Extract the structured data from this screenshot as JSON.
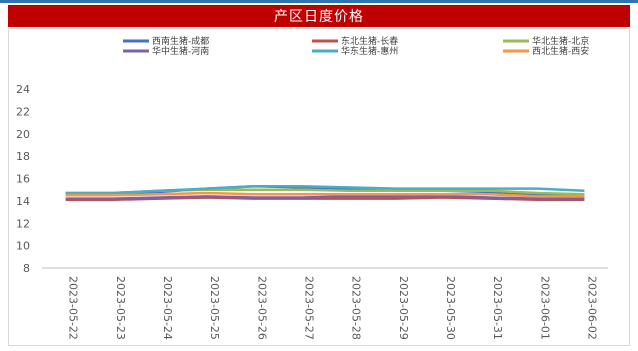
{
  "chart_data": {
    "type": "line",
    "title": "产区日度价格",
    "xlabel": "",
    "ylabel": "",
    "ylim": [
      8,
      24
    ],
    "yticks": [
      8,
      10,
      12,
      14,
      16,
      18,
      20,
      22,
      24
    ],
    "grid": false,
    "legend_position": "top",
    "categories": [
      "2023-05-22",
      "2023-05-23",
      "2023-05-24",
      "2023-05-25",
      "2023-05-26",
      "2023-05-27",
      "2023-05-28",
      "2023-05-29",
      "2023-05-30",
      "2023-05-31",
      "2023-06-01",
      "2023-06-02"
    ],
    "series": [
      {
        "name": "西南生猪-成都",
        "color": "#4472c4",
        "values": [
          14.6,
          14.6,
          14.8,
          15.1,
          15.3,
          15.2,
          15.1,
          15.0,
          14.9,
          14.8,
          14.6,
          14.5
        ]
      },
      {
        "name": "东北生猪-长春",
        "color": "#c0504d",
        "values": [
          14.1,
          14.1,
          14.2,
          14.3,
          14.2,
          14.2,
          14.2,
          14.2,
          14.3,
          14.2,
          14.1,
          14.1
        ]
      },
      {
        "name": "华北生猪-北京",
        "color": "#9bbb59",
        "values": [
          14.7,
          14.7,
          14.9,
          15.0,
          15.0,
          15.0,
          14.9,
          14.9,
          14.9,
          14.9,
          14.7,
          14.6
        ]
      },
      {
        "name": "华中生猪-河南",
        "color": "#7f5fa6",
        "values": [
          14.2,
          14.2,
          14.3,
          14.4,
          14.3,
          14.3,
          14.4,
          14.4,
          14.4,
          14.3,
          14.2,
          14.2
        ]
      },
      {
        "name": "华东生猪-惠州",
        "color": "#4bacc6",
        "values": [
          14.7,
          14.7,
          14.9,
          15.1,
          15.3,
          15.3,
          15.2,
          15.1,
          15.1,
          15.1,
          15.1,
          14.9
        ]
      },
      {
        "name": "西北生猪-西安",
        "color": "#f79646",
        "values": [
          14.5,
          14.5,
          14.6,
          14.7,
          14.6,
          14.6,
          14.6,
          14.6,
          14.6,
          14.6,
          14.4,
          14.4
        ]
      }
    ]
  }
}
